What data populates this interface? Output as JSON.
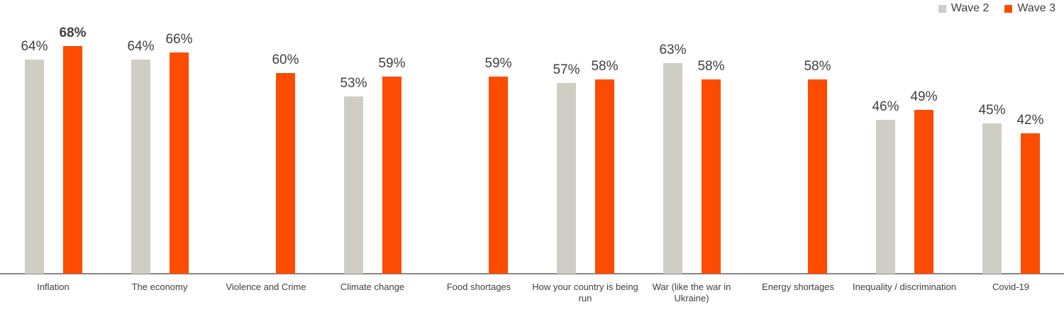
{
  "legend": [
    {
      "label": "Wave 2",
      "color": "#d0cec4"
    },
    {
      "label": "Wave 3",
      "color": "#fc4c02"
    }
  ],
  "chart_data": {
    "type": "bar",
    "title": "",
    "xlabel": "",
    "ylabel": "",
    "grid": false,
    "legend_position": "top-right",
    "value_suffix": "%",
    "ylim": [
      0,
      80
    ],
    "categories": [
      "Inflation",
      "The economy",
      "Violence and Crime",
      "Climate change",
      "Food shortages",
      "How your country is being run",
      "War (like the war in Ukraine)",
      "Energy shortages",
      "Inequality / discrimination",
      "Covid-19"
    ],
    "series": [
      {
        "name": "Wave 2",
        "color": "#d0cec4",
        "values": [
          64,
          64,
          null,
          53,
          null,
          57,
          63,
          null,
          46,
          45
        ]
      },
      {
        "name": "Wave 3",
        "color": "#fc4c02",
        "values": [
          68,
          66,
          60,
          59,
          59,
          58,
          58,
          58,
          49,
          42
        ]
      }
    ],
    "bold_labels": [
      {
        "series": "Wave 3",
        "category": "Inflation"
      }
    ]
  },
  "colors": {
    "wave2": "#d0cec4",
    "wave3": "#fc4c02",
    "text": "#404040",
    "axis": "#868686",
    "background": "#ffffff"
  }
}
